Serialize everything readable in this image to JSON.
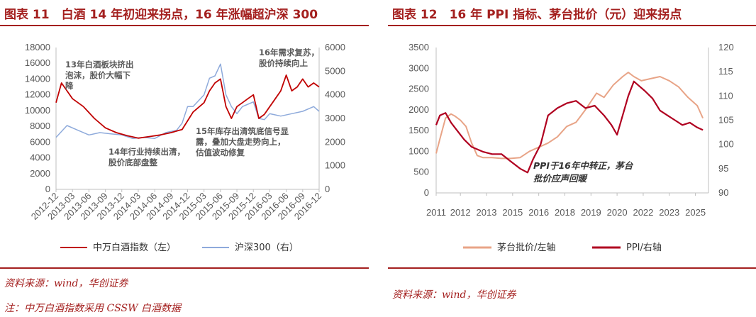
{
  "panel1": {
    "title": "图表 11　白酒 14 年初迎来拐点，16 年涨幅超沪深 300",
    "source": "资料来源：wind，华创证券",
    "note": "注：中万白酒指数采用 CSSW 白酒数据"
  },
  "panel2": {
    "title": "图表 12　16 年 PPI 指标、茅台批价（元）迎来拐点",
    "source": "资料来源：wind，华创证券"
  },
  "chart_data": [
    {
      "type": "line",
      "y_left_ticks": [
        "0",
        "2000",
        "4000",
        "6000",
        "8000",
        "10000",
        "12000",
        "14000",
        "16000",
        "18000"
      ],
      "y_right_ticks": [
        "0",
        "1000",
        "2000",
        "3000",
        "4000",
        "5000",
        "6000"
      ],
      "ylim_left": [
        0,
        18000
      ],
      "ylim_right": [
        0,
        6000
      ],
      "x_ticks": [
        "2012-12",
        "2013-03",
        "2013-06",
        "2013-09",
        "2013-12",
        "2014-03",
        "2014-06",
        "2014-09",
        "2014-12",
        "2015-03",
        "2015-06",
        "2015-09",
        "2015-12",
        "2016-03",
        "2016-06",
        "2016-09",
        "2016-12"
      ],
      "series": [
        {
          "name": "中万白酒指数（左）",
          "axis": "left",
          "color": "#c00000",
          "x": [
            "2012-12",
            "2013-01",
            "2013-02",
            "2013-03",
            "2013-05",
            "2013-07",
            "2013-09",
            "2013-11",
            "2014-01",
            "2014-03",
            "2014-05",
            "2014-07",
            "2014-09",
            "2014-11",
            "2015-01",
            "2015-03",
            "2015-04",
            "2015-05",
            "2015-06",
            "2015-07",
            "2015-08",
            "2015-09",
            "2015-10",
            "2015-11",
            "2015-12",
            "2016-01",
            "2016-02",
            "2016-03",
            "2016-04",
            "2016-05",
            "2016-06",
            "2016-07",
            "2016-08",
            "2016-09",
            "2016-10",
            "2016-11",
            "2016-12"
          ],
          "values": [
            11000,
            13500,
            12500,
            11500,
            10500,
            9000,
            7800,
            7200,
            6800,
            6500,
            6700,
            6900,
            7200,
            7600,
            9800,
            11000,
            12500,
            13500,
            14000,
            10500,
            9000,
            10500,
            11000,
            11500,
            12000,
            9000,
            9500,
            10500,
            11500,
            12500,
            14500,
            12500,
            13000,
            14000,
            13000,
            13500,
            13000
          ]
        },
        {
          "name": "沪深300（右）",
          "axis": "right",
          "color": "#8eaadb",
          "x": [
            "2012-12",
            "2013-02",
            "2013-04",
            "2013-06",
            "2013-08",
            "2013-10",
            "2013-12",
            "2014-02",
            "2014-04",
            "2014-06",
            "2014-08",
            "2014-10",
            "2014-11",
            "2014-12",
            "2015-01",
            "2015-03",
            "2015-04",
            "2015-05",
            "2015-06",
            "2015-07",
            "2015-08",
            "2015-09",
            "2015-10",
            "2015-11",
            "2015-12",
            "2016-01",
            "2016-02",
            "2016-03",
            "2016-05",
            "2016-07",
            "2016-09",
            "2016-11",
            "2016-12"
          ],
          "values": [
            2200,
            2700,
            2500,
            2300,
            2400,
            2350,
            2300,
            2150,
            2200,
            2150,
            2400,
            2500,
            2800,
            3500,
            3500,
            4000,
            4700,
            4800,
            5300,
            4000,
            3500,
            3200,
            3500,
            3600,
            3700,
            3000,
            2950,
            3200,
            3100,
            3200,
            3300,
            3500,
            3300
          ]
        }
      ],
      "annotations": [
        {
          "text": [
            "13年白酒板块挤出",
            "泡沫，股价大幅下",
            "降"
          ]
        },
        {
          "text": [
            "14年行业持续出清，",
            "股价底部盘整"
          ]
        },
        {
          "text": [
            "15年库存出清筑底信号显",
            "露，叠加大盘走势向上，",
            "估值波动修复"
          ]
        },
        {
          "text": [
            "16年需求复苏，",
            "股价持续向上"
          ]
        }
      ]
    },
    {
      "type": "line",
      "y_left_ticks": [
        "0",
        "500",
        "1000",
        "1500",
        "2000",
        "2500",
        "3000",
        "3500"
      ],
      "y_right_ticks": [
        "90",
        "95",
        "100",
        "105",
        "110",
        "115",
        "120"
      ],
      "ylim_left": [
        0,
        3500
      ],
      "ylim_right": [
        90,
        120
      ],
      "x_ticks": [
        "2011",
        "2012",
        "2013",
        "2015",
        "2016",
        "2018",
        "2019",
        "2020",
        "2022",
        "2023",
        "2025"
      ],
      "series": [
        {
          "name": "茅台批价/左轴",
          "axis": "left",
          "color": "#e8a487",
          "x": [
            2011.0,
            2011.2,
            2011.5,
            2011.8,
            2012.0,
            2012.3,
            2012.6,
            2012.9,
            2013.2,
            2013.5,
            2014.0,
            2014.5,
            2015.0,
            2015.5,
            2016.0,
            2016.5,
            2017.0,
            2017.5,
            2018.0,
            2018.5,
            2019.0,
            2019.3,
            2019.6,
            2020.0,
            2020.5,
            2021.0,
            2021.3,
            2021.6,
            2022.0,
            2022.5,
            2023.0,
            2023.5,
            2024.0,
            2024.5,
            2025.0,
            2025.3
          ],
          "values": [
            950,
            1300,
            1800,
            1900,
            1850,
            1750,
            1600,
            1200,
            900,
            850,
            850,
            830,
            830,
            850,
            1000,
            1100,
            1200,
            1350,
            1600,
            1700,
            2000,
            2200,
            2400,
            2300,
            2600,
            2800,
            2900,
            2800,
            2700,
            2750,
            2800,
            2700,
            2550,
            2300,
            2100,
            1800
          ]
        },
        {
          "name": "PPI/右轴",
          "axis": "right",
          "color": "#b00020",
          "x": [
            2011.0,
            2011.2,
            2011.5,
            2011.8,
            2012.1,
            2012.5,
            2012.9,
            2013.5,
            2014.0,
            2014.5,
            2015.0,
            2015.5,
            2015.9,
            2016.2,
            2016.6,
            2017.0,
            2017.5,
            2018.0,
            2018.5,
            2019.0,
            2019.5,
            2020.0,
            2020.4,
            2020.7,
            2021.0,
            2021.3,
            2021.6,
            2021.9,
            2022.2,
            2022.6,
            2023.0,
            2023.4,
            2023.8,
            2024.2,
            2024.6,
            2025.0,
            2025.3
          ],
          "values": [
            104,
            106,
            106.5,
            104.5,
            103,
            101,
            99.5,
            98.5,
            98,
            98,
            96.5,
            95,
            94.2,
            97,
            100,
            106,
            107.5,
            108.5,
            109,
            107.5,
            108,
            106,
            104,
            102,
            106,
            110,
            113,
            112,
            111,
            109.5,
            107,
            106,
            105,
            104,
            104.5,
            103.5,
            103
          ]
        }
      ],
      "annotations": [
        {
          "text": [
            "PPI于16年中转正，茅台",
            "批价应声回暖"
          ]
        }
      ]
    }
  ]
}
